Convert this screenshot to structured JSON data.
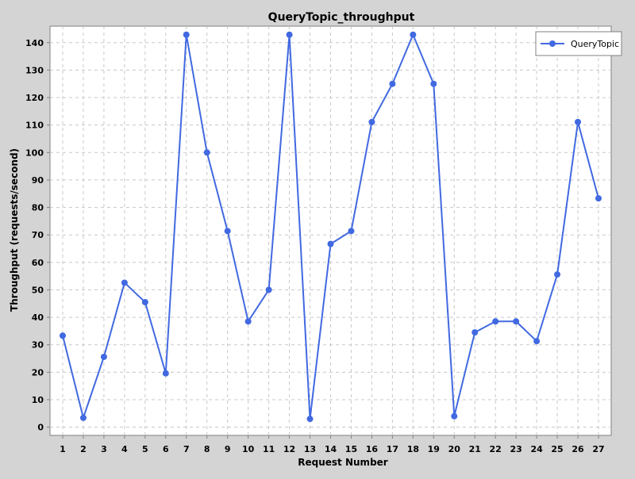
{
  "chart_data": {
    "type": "line",
    "title": "QueryTopic_throughput",
    "xlabel": "Request Number",
    "ylabel": "Throughput (requests/second)",
    "categories": [
      "1",
      "2",
      "3",
      "4",
      "5",
      "6",
      "7",
      "8",
      "9",
      "10",
      "11",
      "12",
      "13",
      "14",
      "15",
      "16",
      "17",
      "18",
      "19",
      "20",
      "21",
      "22",
      "23",
      "24",
      "25",
      "26",
      "27"
    ],
    "series": [
      {
        "name": "QueryTopic",
        "color": "#4169e1",
        "values": [
          33.3,
          3.4,
          25.6,
          52.6,
          45.5,
          19.6,
          142.9,
          100,
          71.4,
          38.5,
          50,
          142.9,
          3.0,
          66.7,
          71.4,
          111.1,
          125,
          142.9,
          125,
          4.0,
          34.5,
          38.5,
          38.5,
          31.3,
          55.6,
          111.1,
          83.3
        ]
      }
    ],
    "ylim": [
      -3,
      146
    ],
    "yticks": [
      0,
      10,
      20,
      30,
      40,
      50,
      60,
      70,
      80,
      90,
      100,
      110,
      120,
      130,
      140
    ],
    "grid": true,
    "legend_position": "top-right"
  }
}
